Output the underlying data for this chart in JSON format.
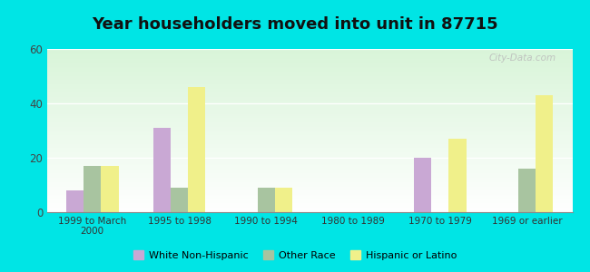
{
  "title": "Year householders moved into unit in 87715",
  "categories": [
    "1999 to March\n2000",
    "1995 to 1998",
    "1990 to 1994",
    "1980 to 1989",
    "1970 to 1979",
    "1969 or earlier"
  ],
  "series": {
    "White Non-Hispanic": [
      8,
      31,
      0,
      0,
      20,
      0
    ],
    "Other Race": [
      17,
      9,
      9,
      0,
      0,
      16
    ],
    "Hispanic or Latino": [
      17,
      46,
      9,
      0,
      27,
      43
    ]
  },
  "colors": {
    "White Non-Hispanic": "#c9a8d4",
    "Other Race": "#a8c4a0",
    "Hispanic or Latino": "#f0f08a"
  },
  "ylim": [
    0,
    60
  ],
  "yticks": [
    0,
    20,
    40,
    60
  ],
  "background_color": "#00e5e5",
  "title_fontsize": 13,
  "watermark": "City-Data.com"
}
